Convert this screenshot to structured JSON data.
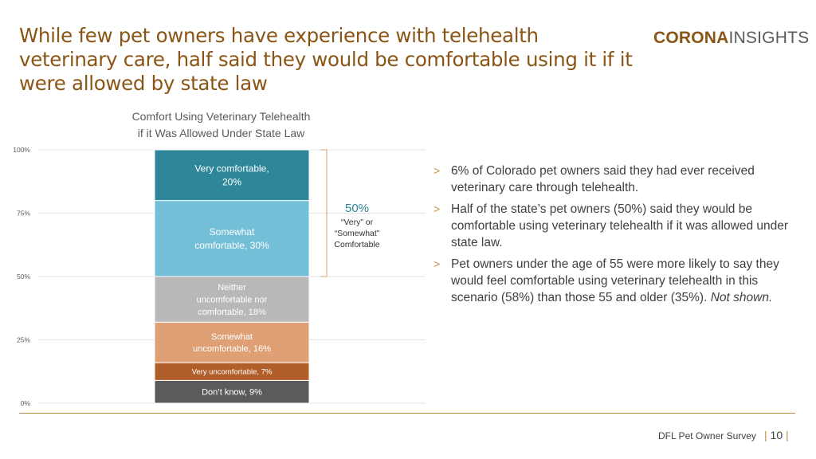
{
  "slide": {
    "title": "While few pet owners have experience with telehealth veterinary care, half said they would be comfortable using it if it were allowed by state law",
    "logo_bold": "CORONA",
    "logo_light": "INSIGHTS",
    "footer": "DFL Pet Owner Survey",
    "page_number": "10"
  },
  "bullets": [
    {
      "marker": ">",
      "text": "6% of Colorado pet owners said they had ever received veterinary care through telehealth."
    },
    {
      "marker": ">",
      "text": "Half of the state’s pet owners (50%) said they would be comfortable using veterinary telehealth if it was allowed under state law."
    },
    {
      "marker": ">",
      "text": "Pet owners under the age of 55 were more likely to say they would feel comfortable using veterinary telehealth in this scenario (58%) than those 55 and older (35%).",
      "emphasis": "Not shown."
    }
  ],
  "chart_data": {
    "type": "bar",
    "stacked": true,
    "title_lines": [
      "Comfort Using Veterinary Telehealth",
      "if it Was Allowed Under State Law"
    ],
    "ylim": [
      0,
      100
    ],
    "y_ticks": [
      {
        "value": 0,
        "label": "0%"
      },
      {
        "value": 25,
        "label": "25%"
      },
      {
        "value": 50,
        "label": "50%"
      },
      {
        "value": 75,
        "label": "75%"
      },
      {
        "value": 100,
        "label": "100%"
      }
    ],
    "grid": true,
    "segments": [
      {
        "name": "Don't know",
        "value": 9,
        "label_lines": [
          "Don’t know, 9%"
        ],
        "color": "#5b5b5b",
        "text_color": "#ffffff",
        "font_size": 11
      },
      {
        "name": "Very uncomfortable",
        "value": 7,
        "label_lines": [
          "Very uncomfortable, 7%"
        ],
        "color": "#b05f2a",
        "text_color": "#ffffff",
        "font_size": 9.5
      },
      {
        "name": "Somewhat uncomfortable",
        "value": 16,
        "label_lines": [
          "Somewhat",
          "uncomfortable, 16%"
        ],
        "color": "#dfa076",
        "text_color": "#ffffff",
        "font_size": 11
      },
      {
        "name": "Neither uncomfortable nor comfortable",
        "value": 18,
        "label_lines": [
          "Neither",
          "uncomfortable nor",
          "comfortable, 18%"
        ],
        "color": "#b8b8b8",
        "text_color": "#ffffff",
        "font_size": 11
      },
      {
        "name": "Somewhat comfortable",
        "value": 30,
        "label_lines": [
          "Somewhat",
          "comfortable, 30%"
        ],
        "color": "#73bfd8",
        "text_color": "#ffffff",
        "font_size": 12
      },
      {
        "name": "Very comfortable",
        "value": 20,
        "label_lines": [
          "Very comfortable,",
          "20%"
        ],
        "color": "#2e8799",
        "text_color": "#ffffff",
        "font_size": 12
      }
    ],
    "bracket": {
      "from": 50,
      "to": 100,
      "value_label": "50%",
      "caption_lines": [
        "“Very” or",
        "“Somewhat”",
        "Comfortable"
      ],
      "color": "#e3b48b",
      "value_color": "#2e8799"
    }
  }
}
